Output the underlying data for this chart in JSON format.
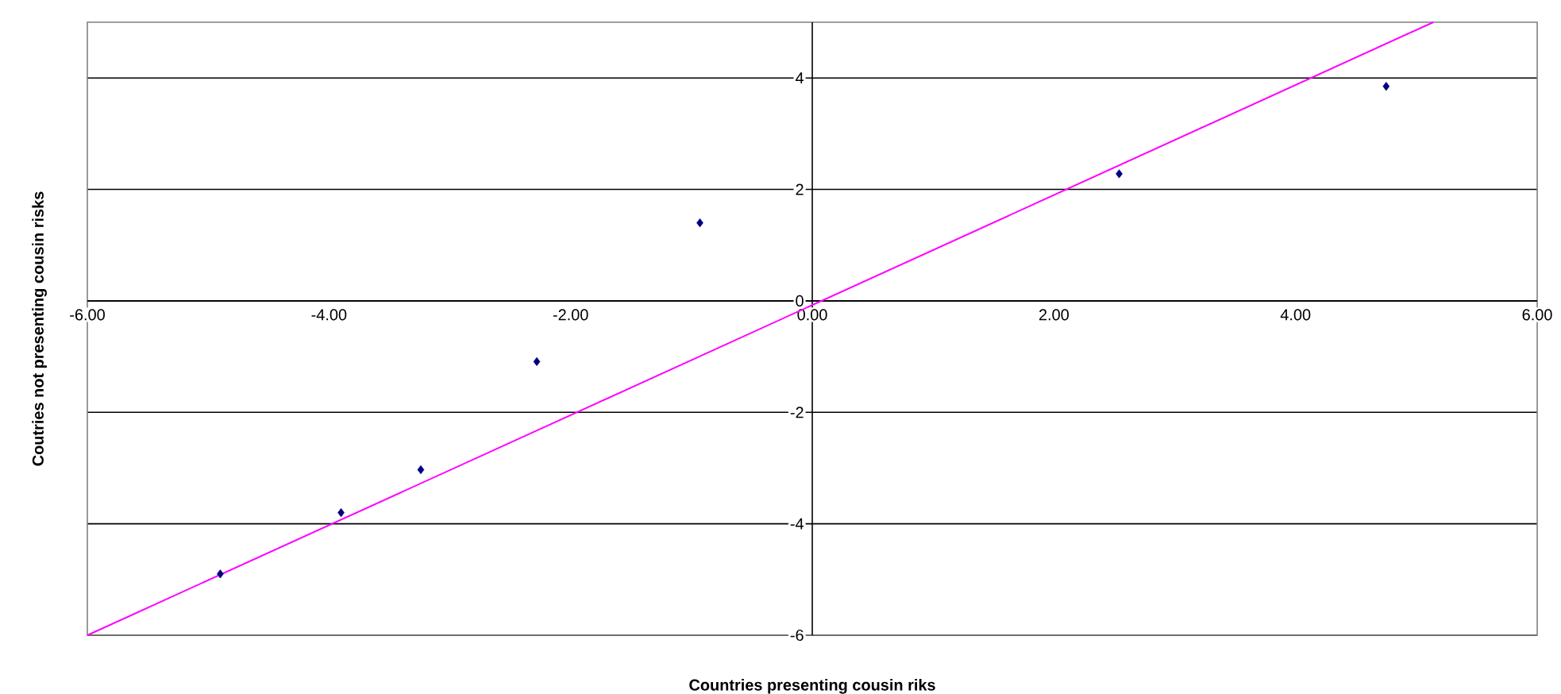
{
  "chart_data": {
    "type": "scatter",
    "xlabel": "Countries presenting cousin riks",
    "ylabel": "Coutries not presenting cousin risks",
    "xlim": [
      -6,
      6
    ],
    "ylim": [
      -6,
      5
    ],
    "xticks": [
      {
        "value": -6,
        "label": "-6.00"
      },
      {
        "value": -4,
        "label": "-4.00"
      },
      {
        "value": -2,
        "label": "-2.00"
      },
      {
        "value": 0,
        "label": "0.00"
      },
      {
        "value": 2,
        "label": "2.00"
      },
      {
        "value": 4,
        "label": "4.00"
      },
      {
        "value": 6,
        "label": "6.00"
      }
    ],
    "yticks": [
      -6,
      -4,
      -2,
      0,
      2,
      4
    ],
    "grid": "y",
    "marker": "diamond",
    "series": [
      {
        "type": "scatter",
        "color": "#000080",
        "x": [
          -4.9,
          -3.9,
          -3.24,
          -2.28,
          -0.93,
          2.54,
          4.75
        ],
        "values": [
          -4.9,
          -3.8,
          -3.03,
          -1.09,
          1.4,
          2.28,
          3.85
        ]
      },
      {
        "type": "line",
        "color": "#ff00ff",
        "marker": "none",
        "x": [
          -6,
          5.14
        ],
        "values": [
          -6,
          5
        ]
      }
    ]
  }
}
